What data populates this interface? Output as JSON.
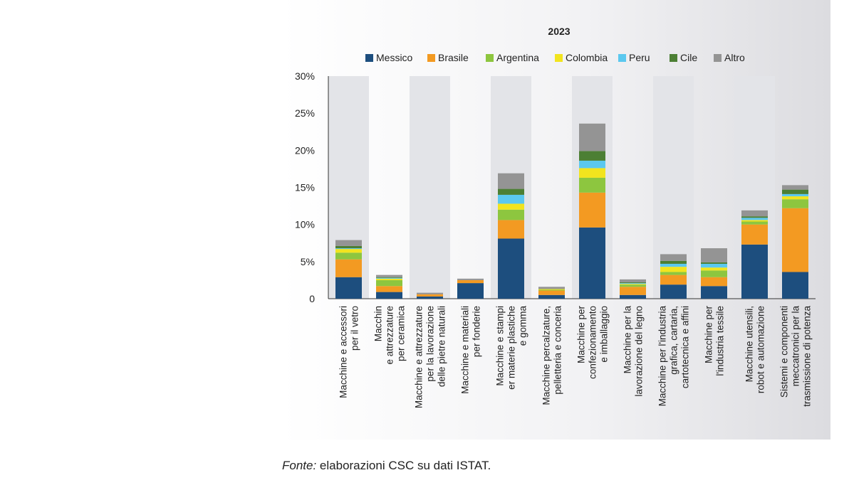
{
  "chart_data": {
    "type": "bar",
    "stacked": true,
    "title": "2023",
    "ylim": [
      0,
      30
    ],
    "yticks": [
      "0",
      "5%",
      "10%",
      "15%",
      "20%",
      "25%",
      "30%"
    ],
    "legend_position": "top",
    "categories": [
      [
        "Macchine e accessori",
        "per il vetro"
      ],
      [
        "Macchin",
        "e attrezzature",
        "per ceramica"
      ],
      [
        "Macchine e attrezzature",
        "per la lavorazione",
        "delle pietre naturali"
      ],
      [
        "Macchine e materiali",
        "per fonderie"
      ],
      [
        "Macchine e stampi",
        "er materie plastiche",
        "e gomma"
      ],
      [
        "Macchine percalzature,",
        "pelletteria e conceria"
      ],
      [
        "Macchine per",
        "confezionamento",
        "e imballaggio"
      ],
      [
        "Macchine per la",
        "lavorazione del legno"
      ],
      [
        "Macchine per l'industria",
        "grafica, cartaria,",
        "cartotecnica e affini"
      ],
      [
        "Macchine per",
        "l'industria tessile"
      ],
      [
        "Macchine utensili,",
        "robot e automazione"
      ],
      [
        "Sistemi e componenti",
        "meccatronici per la",
        "trasmissione di potenza"
      ]
    ],
    "series": [
      {
        "name": "Messico",
        "color": "#1d4e7e",
        "values": [
          2.9,
          0.9,
          0.3,
          2.1,
          8.1,
          0.5,
          9.6,
          0.5,
          1.9,
          1.7,
          7.3,
          3.6
        ]
      },
      {
        "name": "Brasile",
        "color": "#f39a22",
        "values": [
          2.4,
          0.8,
          0.3,
          0.4,
          2.5,
          0.6,
          4.7,
          1.1,
          1.3,
          1.2,
          2.7,
          8.6
        ]
      },
      {
        "name": "Argentina",
        "color": "#8dc63f",
        "values": [
          0.9,
          0.8,
          0.0,
          0.0,
          1.4,
          0.1,
          2.0,
          0.3,
          0.4,
          0.9,
          0.4,
          1.2
        ]
      },
      {
        "name": "Colombia",
        "color": "#f2e41e",
        "values": [
          0.5,
          0.2,
          0.0,
          0.0,
          0.8,
          0.1,
          1.3,
          0.1,
          0.7,
          0.4,
          0.2,
          0.4
        ]
      },
      {
        "name": "Peru",
        "color": "#5bc8ef",
        "values": [
          0.1,
          0.1,
          0.0,
          0.0,
          1.2,
          0.0,
          1.0,
          0.1,
          0.4,
          0.5,
          0.3,
          0.3
        ]
      },
      {
        "name": "Cile",
        "color": "#4c7f34",
        "values": [
          0.3,
          0.1,
          0.0,
          0.0,
          0.8,
          0.0,
          1.3,
          0.1,
          0.4,
          0.2,
          0.2,
          0.6
        ]
      },
      {
        "name": "Altro",
        "color": "#949494",
        "values": [
          0.8,
          0.3,
          0.2,
          0.2,
          2.1,
          0.3,
          3.7,
          0.4,
          0.9,
          1.9,
          0.8,
          0.6
        ]
      }
    ]
  },
  "source": {
    "label": "Fonte:",
    "text": " elaborazioni CSC su dati ISTAT."
  }
}
